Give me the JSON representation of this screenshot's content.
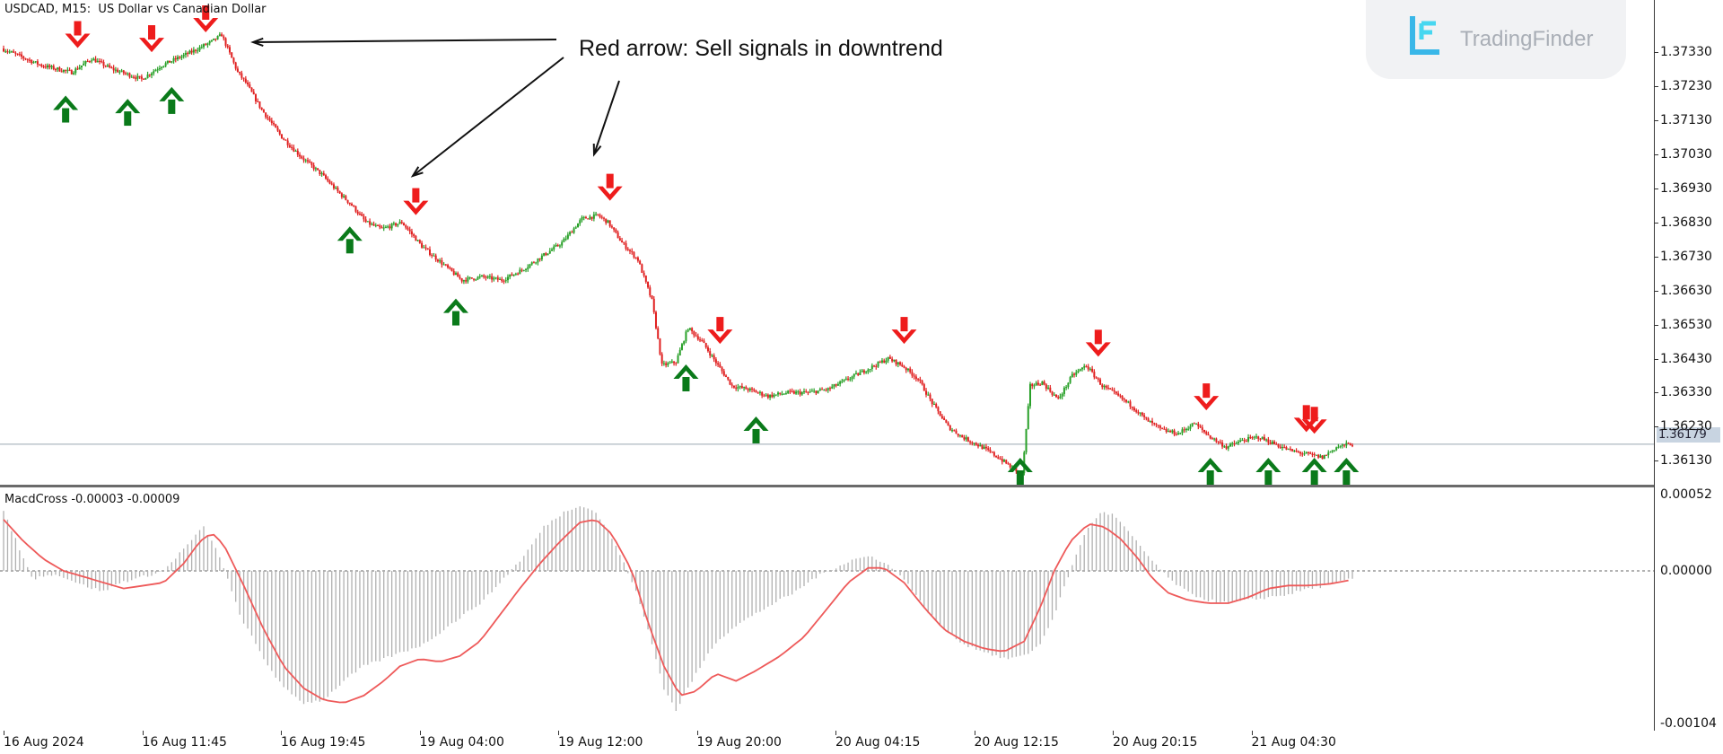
{
  "chart": {
    "symbol_label": "USDCAD, M15:  US Dollar vs Canadian Dollar",
    "current_price": "1.36179",
    "price_axis_labels": [
      "1.37330",
      "1.37230",
      "1.37130",
      "1.37030",
      "1.36930",
      "1.36830",
      "1.36730",
      "1.36630",
      "1.36530",
      "1.36430",
      "1.36330",
      "1.36230",
      "1.36130"
    ],
    "time_axis_labels": [
      "16 Aug 2024",
      "16 Aug 11:45",
      "16 Aug 19:45",
      "19 Aug 04:00",
      "19 Aug 12:00",
      "19 Aug 20:00",
      "20 Aug 04:15",
      "20 Aug 12:15",
      "20 Aug 20:15",
      "21 Aug 04:30"
    ],
    "colors": {
      "bull": "#28a028",
      "bear": "#e02020",
      "buy_arrow": "#0a7a1a",
      "sell_arrow": "#ee1c1c",
      "signal_line": "#ee5a5a",
      "histogram": "#b0b0b0",
      "grid": "#9aa7b0"
    }
  },
  "indicator": {
    "label": "MacdCross -0.00003 -0.00009",
    "axis_labels": [
      "0.00052",
      "0.00000",
      "-0.00104"
    ]
  },
  "annotation": {
    "text": "Red arrow: Sell signals in downtrend"
  },
  "logo": {
    "text": "TradingFinder",
    "icon": "tradingfinder-logo-icon"
  },
  "chart_data": {
    "type": "candlestick",
    "title": "USDCAD, M15:  US Dollar vs Canadian Dollar",
    "x_labels": [
      "16 Aug 2024",
      "16 Aug 11:45",
      "16 Aug 19:45",
      "19 Aug 04:00",
      "19 Aug 12:00",
      "19 Aug 20:00",
      "20 Aug 04:15",
      "20 Aug 12:15",
      "20 Aug 20:15",
      "21 Aug 04:30"
    ],
    "ylim": [
      1.3606,
      1.3744
    ],
    "close_path": [
      [
        0,
        1.3734
      ],
      [
        20,
        1.3729
      ],
      [
        35,
        1.3727
      ],
      [
        45,
        1.3731
      ],
      [
        55,
        1.3728
      ],
      [
        70,
        1.3725
      ],
      [
        80,
        1.3729
      ],
      [
        95,
        1.3733
      ],
      [
        105,
        1.3736
      ],
      [
        110,
        1.3738
      ],
      [
        118,
        1.3727
      ],
      [
        122,
        1.3724
      ],
      [
        130,
        1.3716
      ],
      [
        140,
        1.3708
      ],
      [
        150,
        1.3702
      ],
      [
        160,
        1.3697
      ],
      [
        168,
        1.3692
      ],
      [
        175,
        1.3688
      ],
      [
        182,
        1.3683
      ],
      [
        190,
        1.3681
      ],
      [
        200,
        1.3683
      ],
      [
        210,
        1.3676
      ],
      [
        220,
        1.3671
      ],
      [
        230,
        1.3666
      ],
      [
        240,
        1.3667
      ],
      [
        250,
        1.3666
      ],
      [
        260,
        1.3669
      ],
      [
        270,
        1.3673
      ],
      [
        280,
        1.3677
      ],
      [
        290,
        1.3684
      ],
      [
        298,
        1.3685
      ],
      [
        303,
        1.3683
      ],
      [
        310,
        1.3677
      ],
      [
        318,
        1.3672
      ],
      [
        325,
        1.366
      ],
      [
        330,
        1.3641
      ],
      [
        337,
        1.3642
      ],
      [
        343,
        1.3652
      ],
      [
        350,
        1.3648
      ],
      [
        358,
        1.3641
      ],
      [
        365,
        1.3635
      ],
      [
        373,
        1.3634
      ],
      [
        383,
        1.3632
      ],
      [
        393,
        1.3633
      ],
      [
        403,
        1.3633
      ],
      [
        413,
        1.3634
      ],
      [
        423,
        1.3637
      ],
      [
        433,
        1.364
      ],
      [
        443,
        1.3643
      ],
      [
        450,
        1.3641
      ],
      [
        458,
        1.3637
      ],
      [
        465,
        1.363
      ],
      [
        473,
        1.3623
      ],
      [
        480,
        1.362
      ],
      [
        490,
        1.3617
      ],
      [
        498,
        1.3614
      ],
      [
        505,
        1.3611
      ],
      [
        510,
        1.3609
      ],
      [
        514,
        1.3635
      ],
      [
        520,
        1.3636
      ],
      [
        528,
        1.3631
      ],
      [
        535,
        1.3638
      ],
      [
        542,
        1.3641
      ],
      [
        550,
        1.3635
      ],
      [
        558,
        1.3632
      ],
      [
        565,
        1.3629
      ],
      [
        572,
        1.3625
      ],
      [
        580,
        1.3622
      ],
      [
        588,
        1.3621
      ],
      [
        596,
        1.3624
      ],
      [
        604,
        1.362
      ],
      [
        612,
        1.3617
      ],
      [
        620,
        1.3619
      ],
      [
        628,
        1.362
      ],
      [
        636,
        1.3618
      ],
      [
        644,
        1.3616
      ],
      [
        652,
        1.3615
      ],
      [
        660,
        1.3614
      ],
      [
        667,
        1.3617
      ],
      [
        674,
        1.3618
      ]
    ],
    "signals": {
      "sell_bar_index": [
        37,
        74,
        101,
        206,
        303,
        358,
        450,
        547,
        601,
        651,
        655
      ],
      "buy_bar_index": [
        31,
        62,
        84,
        173,
        226,
        341,
        376,
        508,
        603,
        632,
        655,
        671
      ]
    },
    "macd": {
      "label": "MacdCross -0.00003 -0.00009",
      "ylim": [
        -0.00104,
        0.00052
      ],
      "histogram_path": [
        [
          0,
          0.0004
        ],
        [
          5,
          0.00025
        ],
        [
          10,
          8e-05
        ],
        [
          15,
          -6e-05
        ],
        [
          22,
          -2e-05
        ],
        [
          30,
          -4e-05
        ],
        [
          40,
          -0.0001
        ],
        [
          50,
          -0.00014
        ],
        [
          58,
          -8e-05
        ],
        [
          70,
          -4e-05
        ],
        [
          80,
          0.0
        ],
        [
          92,
          0.00018
        ],
        [
          100,
          0.0003
        ],
        [
          108,
          0.0001
        ],
        [
          118,
          -0.0003
        ],
        [
          130,
          -0.0006
        ],
        [
          140,
          -0.0008
        ],
        [
          150,
          -0.0009
        ],
        [
          160,
          -0.00088
        ],
        [
          170,
          -0.00075
        ],
        [
          180,
          -0.00065
        ],
        [
          190,
          -0.0006
        ],
        [
          200,
          -0.00055
        ],
        [
          210,
          -0.0005
        ],
        [
          220,
          -0.0004
        ],
        [
          230,
          -0.0003
        ],
        [
          240,
          -0.0002
        ],
        [
          250,
          -5e-05
        ],
        [
          260,
          0.0001
        ],
        [
          270,
          0.0003
        ],
        [
          280,
          0.0004
        ],
        [
          288,
          0.00045
        ],
        [
          296,
          0.0004
        ],
        [
          305,
          0.0002
        ],
        [
          315,
          -0.0001
        ],
        [
          322,
          -0.0004
        ],
        [
          330,
          -0.0008
        ],
        [
          336,
          -0.00095
        ],
        [
          344,
          -0.00075
        ],
        [
          355,
          -0.0005
        ],
        [
          365,
          -0.00038
        ],
        [
          375,
          -0.0003
        ],
        [
          385,
          -0.00022
        ],
        [
          395,
          -0.00015
        ],
        [
          405,
          -5e-05
        ],
        [
          415,
          2e-05
        ],
        [
          425,
          8e-05
        ],
        [
          433,
          0.0001
        ],
        [
          440,
          6e-05
        ],
        [
          450,
          -5e-05
        ],
        [
          460,
          -0.00025
        ],
        [
          470,
          -0.0004
        ],
        [
          480,
          -0.0005
        ],
        [
          490,
          -0.00055
        ],
        [
          500,
          -0.0006
        ],
        [
          510,
          -0.00058
        ],
        [
          518,
          -0.0005
        ],
        [
          525,
          -0.0003
        ],
        [
          533,
          0.0
        ],
        [
          540,
          0.00025
        ],
        [
          548,
          0.0004
        ],
        [
          555,
          0.00038
        ],
        [
          563,
          0.00025
        ],
        [
          572,
          0.0001
        ],
        [
          582,
          -5e-05
        ],
        [
          592,
          -0.00015
        ],
        [
          602,
          -0.0002
        ],
        [
          612,
          -0.00022
        ],
        [
          622,
          -0.0002
        ],
        [
          632,
          -0.00018
        ],
        [
          642,
          -0.00016
        ],
        [
          652,
          -0.00012
        ],
        [
          662,
          -0.0001
        ],
        [
          674,
          -5e-05
        ]
      ],
      "signal_path": [
        [
          0,
          0.00035
        ],
        [
          10,
          0.0002
        ],
        [
          20,
          8e-05
        ],
        [
          30,
          0.0
        ],
        [
          40,
          -4e-05
        ],
        [
          50,
          -8e-05
        ],
        [
          60,
          -0.00012
        ],
        [
          70,
          -0.0001
        ],
        [
          80,
          -8e-05
        ],
        [
          90,
          5e-05
        ],
        [
          98,
          0.0002
        ],
        [
          104,
          0.00026
        ],
        [
          110,
          0.00018
        ],
        [
          120,
          -0.0001
        ],
        [
          130,
          -0.0004
        ],
        [
          140,
          -0.00065
        ],
        [
          150,
          -0.0008
        ],
        [
          160,
          -0.00088
        ],
        [
          170,
          -0.0009
        ],
        [
          180,
          -0.00085
        ],
        [
          190,
          -0.00075
        ],
        [
          198,
          -0.00065
        ],
        [
          208,
          -0.0006
        ],
        [
          218,
          -0.00062
        ],
        [
          228,
          -0.00058
        ],
        [
          238,
          -0.00048
        ],
        [
          248,
          -0.0003
        ],
        [
          258,
          -0.00012
        ],
        [
          268,
          5e-05
        ],
        [
          278,
          0.0002
        ],
        [
          288,
          0.00033
        ],
        [
          296,
          0.00035
        ],
        [
          304,
          0.00025
        ],
        [
          314,
          0.0
        ],
        [
          322,
          -0.00035
        ],
        [
          330,
          -0.00065
        ],
        [
          338,
          -0.00085
        ],
        [
          346,
          -0.00082
        ],
        [
          356,
          -0.0007
        ],
        [
          366,
          -0.00075
        ],
        [
          376,
          -0.00068
        ],
        [
          388,
          -0.00058
        ],
        [
          400,
          -0.00045
        ],
        [
          412,
          -0.00025
        ],
        [
          422,
          -8e-05
        ],
        [
          432,
          2e-05
        ],
        [
          440,
          2e-05
        ],
        [
          450,
          -8e-05
        ],
        [
          460,
          -0.00025
        ],
        [
          470,
          -0.0004
        ],
        [
          480,
          -0.00048
        ],
        [
          490,
          -0.00053
        ],
        [
          500,
          -0.00055
        ],
        [
          510,
          -0.00048
        ],
        [
          518,
          -0.00025
        ],
        [
          525,
          0.0
        ],
        [
          533,
          0.0002
        ],
        [
          542,
          0.00032
        ],
        [
          550,
          0.0003
        ],
        [
          558,
          0.00022
        ],
        [
          566,
          0.0001
        ],
        [
          574,
          -5e-05
        ],
        [
          582,
          -0.00015
        ],
        [
          592,
          -0.0002
        ],
        [
          602,
          -0.00022
        ],
        [
          612,
          -0.00022
        ],
        [
          622,
          -0.00018
        ],
        [
          632,
          -0.00012
        ],
        [
          642,
          -0.0001
        ],
        [
          652,
          -0.0001
        ],
        [
          662,
          -9e-05
        ],
        [
          674,
          -6e-05
        ]
      ]
    }
  }
}
